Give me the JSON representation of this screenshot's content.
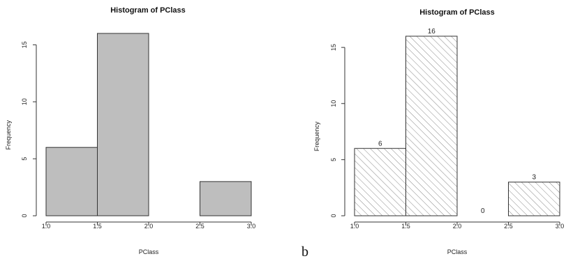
{
  "chart_data": [
    {
      "type": "bar",
      "subtype": "histogram",
      "title": "Histogram of PClass",
      "xlabel": "PClass",
      "ylabel": "Frequency",
      "bins": [
        [
          1.0,
          1.5
        ],
        [
          1.5,
          2.0
        ],
        [
          2.0,
          2.5
        ],
        [
          2.5,
          3.0
        ]
      ],
      "values": [
        6,
        16,
        0,
        3
      ],
      "xlim": [
        1.0,
        3.0
      ],
      "ylim": [
        0,
        16
      ],
      "xticks": [
        "1.0",
        "1.5",
        "2.0",
        "2.5",
        "3.0"
      ],
      "yticks": [
        "0",
        "5",
        "10",
        "15"
      ],
      "bar_fill": "#bebebe",
      "bar_pattern": "solid",
      "show_value_labels": false,
      "grid": false,
      "panel_label": ""
    },
    {
      "type": "bar",
      "subtype": "histogram",
      "title": "Histogram of PClass",
      "xlabel": "PClass",
      "ylabel": "Frequency",
      "bins": [
        [
          1.0,
          1.5
        ],
        [
          1.5,
          2.0
        ],
        [
          2.0,
          2.5
        ],
        [
          2.5,
          3.0
        ]
      ],
      "values": [
        6,
        16,
        0,
        3
      ],
      "xlim": [
        1.0,
        3.0
      ],
      "ylim": [
        0,
        16
      ],
      "xticks": [
        "1.0",
        "1.5",
        "2.0",
        "2.5",
        "3.0"
      ],
      "yticks": [
        "0",
        "5",
        "10",
        "15"
      ],
      "bar_fill": "#ffffff",
      "bar_pattern": "diagonal-hatch",
      "show_value_labels": true,
      "value_labels": [
        "6",
        "16",
        "0",
        "3"
      ],
      "grid": false,
      "panel_label": "b"
    }
  ]
}
